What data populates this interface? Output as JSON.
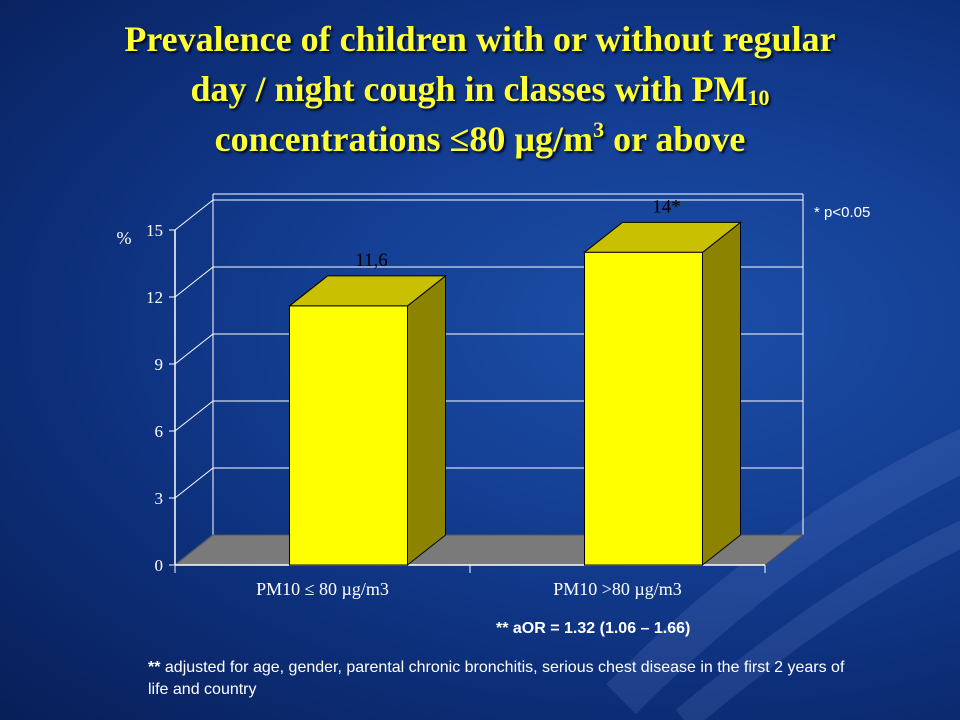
{
  "title": {
    "line1": "Prevalence of children with or without regular",
    "line2_pre": "day / night cough in classes with PM",
    "line2_sub": "10",
    "line3_pre": "concentrations ≤80 µg/m",
    "line3_sup": "3",
    "line3_post": " or above"
  },
  "significance_note": "* p<0.05",
  "aor_note": "** aOR = 1.32 (1.06 – 1.66)",
  "adjust_note": {
    "marker": "**",
    "text": " adjusted for age, gender, parental chronic bronchitis, serious chest disease in the first 2 years of life and country"
  },
  "chart_data": {
    "type": "bar",
    "ylabel": "%",
    "ylim": [
      0,
      15
    ],
    "yticks": [
      0,
      3,
      6,
      9,
      12,
      15
    ],
    "categories": [
      "PM10 ≤ 80 µg/m3",
      "PM10 >80 µg/m3"
    ],
    "values": [
      11.6,
      14
    ],
    "data_labels": [
      "11,6",
      "14*"
    ],
    "colors": {
      "front": "#ffff00",
      "top": "#c8c000",
      "side": "#8c8400",
      "floor": "#7a7a7a",
      "axis": "#ffffff"
    },
    "grid": true
  }
}
